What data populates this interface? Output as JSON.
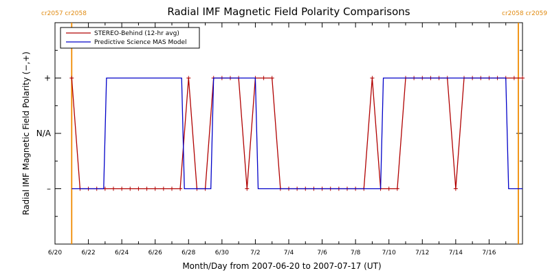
{
  "chart_data": {
    "type": "line",
    "title": "Radial IMF Magnetic Field Polarity Comparisons",
    "xlabel": "Month/Day from 2007-06-20 to 2007-07-17 (UT)",
    "ylabel": "Radial IMF Magnetic Field Polarity (−,+)",
    "xlim": [
      "2007-06-20T00:00",
      "2007-07-18T00:00"
    ],
    "ylim": [
      -2,
      2
    ],
    "x_tick_labels": [
      "6/20",
      "6/22",
      "6/24",
      "6/26",
      "6/28",
      "6/30",
      "7/2",
      "7/4",
      "7/6",
      "7/8",
      "7/10",
      "7/12",
      "7/14",
      "7/16"
    ],
    "y_ticks": [
      {
        "value": 1,
        "label": "+"
      },
      {
        "value": 0,
        "label": "N/A"
      },
      {
        "value": -1,
        "label": "–"
      }
    ],
    "carrington_rotations": [
      {
        "date": "2007-06-21T00:00",
        "label_left": "cr2057",
        "label_right": "cr2058",
        "label_position": "top-left"
      },
      {
        "date": "2007-07-17T18:00",
        "label_left": "cr2058",
        "label_right": "cr2059",
        "label_position": "top-right"
      }
    ],
    "legend_position": "top-left",
    "series": [
      {
        "name": "STEREO-Behind (12-hr avg)",
        "color": "#b00000",
        "marker": "plus",
        "points": [
          [
            "2007-06-21T00:00",
            1
          ],
          [
            "2007-06-21T12:00",
            -1
          ],
          [
            "2007-06-22T00:00",
            -1
          ],
          [
            "2007-06-22T12:00",
            -1
          ],
          [
            "2007-06-23T00:00",
            -1
          ],
          [
            "2007-06-23T12:00",
            -1
          ],
          [
            "2007-06-24T00:00",
            -1
          ],
          [
            "2007-06-24T12:00",
            -1
          ],
          [
            "2007-06-25T00:00",
            -1
          ],
          [
            "2007-06-25T12:00",
            -1
          ],
          [
            "2007-06-26T00:00",
            -1
          ],
          [
            "2007-06-26T12:00",
            -1
          ],
          [
            "2007-06-27T00:00",
            -1
          ],
          [
            "2007-06-27T12:00",
            -1
          ],
          [
            "2007-06-28T00:00",
            1
          ],
          [
            "2007-06-28T12:00",
            -1
          ],
          [
            "2007-06-29T00:00",
            -1
          ],
          [
            "2007-06-29T12:00",
            1
          ],
          [
            "2007-06-30T00:00",
            1
          ],
          [
            "2007-06-30T12:00",
            1
          ],
          [
            "2007-07-01T00:00",
            1
          ],
          [
            "2007-07-01T12:00",
            -1
          ],
          [
            "2007-07-02T00:00",
            1
          ],
          [
            "2007-07-02T12:00",
            1
          ],
          [
            "2007-07-03T00:00",
            1
          ],
          [
            "2007-07-03T12:00",
            -1
          ],
          [
            "2007-07-04T00:00",
            -1
          ],
          [
            "2007-07-04T12:00",
            -1
          ],
          [
            "2007-07-05T00:00",
            -1
          ],
          [
            "2007-07-05T12:00",
            -1
          ],
          [
            "2007-07-06T00:00",
            -1
          ],
          [
            "2007-07-06T12:00",
            -1
          ],
          [
            "2007-07-07T00:00",
            -1
          ],
          [
            "2007-07-07T12:00",
            -1
          ],
          [
            "2007-07-08T00:00",
            -1
          ],
          [
            "2007-07-08T12:00",
            -1
          ],
          [
            "2007-07-09T00:00",
            1
          ],
          [
            "2007-07-09T12:00",
            -1
          ],
          [
            "2007-07-10T00:00",
            -1
          ],
          [
            "2007-07-10T12:00",
            -1
          ],
          [
            "2007-07-11T00:00",
            1
          ],
          [
            "2007-07-11T12:00",
            1
          ],
          [
            "2007-07-12T00:00",
            1
          ],
          [
            "2007-07-12T12:00",
            1
          ],
          [
            "2007-07-13T00:00",
            1
          ],
          [
            "2007-07-13T12:00",
            1
          ],
          [
            "2007-07-14T00:00",
            -1
          ],
          [
            "2007-07-14T12:00",
            1
          ],
          [
            "2007-07-15T00:00",
            1
          ],
          [
            "2007-07-15T12:00",
            1
          ],
          [
            "2007-07-16T00:00",
            1
          ],
          [
            "2007-07-16T12:00",
            1
          ],
          [
            "2007-07-17T00:00",
            1
          ],
          [
            "2007-07-17T12:00",
            1
          ],
          [
            "2007-07-18T00:00",
            1
          ]
        ]
      },
      {
        "name": "Predictive Science MAS Model",
        "color": "#0000c8",
        "marker": "none",
        "points": [
          [
            "2007-06-21T00:00",
            -1
          ],
          [
            "2007-06-22T22:00",
            -1
          ],
          [
            "2007-06-23T02:00",
            1
          ],
          [
            "2007-06-27T14:00",
            1
          ],
          [
            "2007-06-27T18:00",
            -1
          ],
          [
            "2007-06-29T08:00",
            -1
          ],
          [
            "2007-06-29T12:00",
            1
          ],
          [
            "2007-07-02T00:00",
            1
          ],
          [
            "2007-07-02T04:00",
            -1
          ],
          [
            "2007-07-09T12:00",
            -1
          ],
          [
            "2007-07-09T16:00",
            1
          ],
          [
            "2007-07-17T00:00",
            1
          ],
          [
            "2007-07-17T04:00",
            -1
          ],
          [
            "2007-07-18T00:00",
            -1
          ]
        ]
      }
    ]
  }
}
